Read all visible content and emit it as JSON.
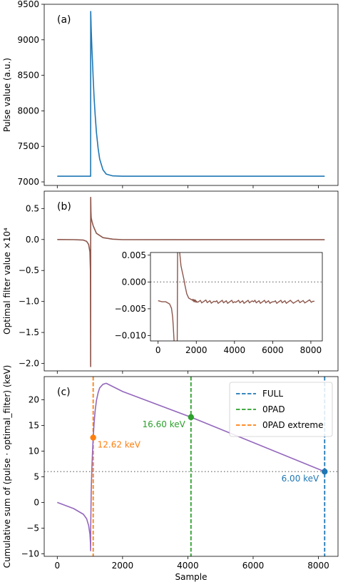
{
  "chart_data": [
    {
      "panel": "(a)",
      "type": "line",
      "ylabel": "Pulse value (a.u.)",
      "xlim": [
        -400,
        8600
      ],
      "ylim": [
        6950,
        9500
      ],
      "yticks": [
        7000,
        7500,
        8000,
        8500,
        9000,
        9500
      ],
      "show_xtick_labels": false,
      "series": [
        {
          "color": "#1f77b4",
          "x": [
            0,
            500,
            1000,
            1023,
            1024,
            1040,
            1060,
            1080,
            1100,
            1130,
            1160,
            1200,
            1250,
            1300,
            1400,
            1500,
            1700,
            2000,
            3000,
            5000,
            8191
          ],
          "y": [
            7080,
            7080,
            7080,
            7080,
            9400,
            9150,
            8900,
            8670,
            8450,
            8180,
            7950,
            7700,
            7480,
            7320,
            7170,
            7110,
            7085,
            7080,
            7080,
            7080,
            7080
          ]
        }
      ]
    },
    {
      "panel": "(b)",
      "type": "line",
      "ylabel": "Optimal filter value ×10⁴",
      "xlim": [
        -400,
        8600
      ],
      "ylim": [
        -2.12,
        0.78
      ],
      "yticks": [
        -2.0,
        -1.5,
        -1.0,
        -0.5,
        0.0,
        0.5
      ],
      "ytick_labels": [
        "−2.0",
        "−1.5",
        "−1.0",
        "−0.5",
        "0.0",
        "0.5"
      ],
      "show_xtick_labels": false,
      "series": [
        {
          "color": "#8c564b",
          "x": [
            0,
            500,
            800,
            900,
            960,
            1000,
            1015,
            1023,
            1024,
            1030,
            1040,
            1060,
            1100,
            1200,
            1400,
            1700,
            2000,
            4000,
            6000,
            8191
          ],
          "y": [
            0.0,
            -0.002,
            -0.01,
            -0.03,
            -0.08,
            -0.2,
            -0.5,
            -2.05,
            0.68,
            0.45,
            0.35,
            0.3,
            0.22,
            0.1,
            0.03,
            0.005,
            -0.003,
            -0.004,
            -0.004,
            -0.004
          ]
        }
      ],
      "inset": {
        "xlim": [
          -400,
          8600
        ],
        "ylim": [
          -0.011,
          0.0055
        ],
        "xticks": [
          0,
          2000,
          4000,
          6000,
          8000
        ],
        "yticks": [
          0.005,
          0.0,
          -0.005,
          -0.01
        ],
        "ytick_labels": [
          "0.005",
          "0.000",
          "−0.005",
          "−0.010"
        ],
        "hline": 0.0,
        "series": [
          {
            "color": "#8c564b",
            "x": [
              0,
              200,
              400,
              600,
              700,
              760,
              800,
              830,
              870,
              1000,
              1024,
              1060,
              1200,
              1350,
              1400,
              1440,
              1500,
              1600,
              1800,
              2000,
              3000,
              4000,
              5000,
              6000,
              7000,
              8191
            ],
            "y": [
              -0.0035,
              -0.0037,
              -0.0037,
              -0.0041,
              -0.0049,
              -0.0065,
              -0.0085,
              -0.0105,
              -0.013,
              -0.013,
              0.008,
              0.008,
              0.003,
              0.0005,
              -0.0005,
              -0.0012,
              -0.0022,
              -0.003,
              -0.0034,
              -0.0036,
              -0.0037,
              -0.0037,
              -0.0037,
              -0.0037,
              -0.0037,
              -0.0036
            ]
          }
        ]
      }
    },
    {
      "panel": "(c)",
      "type": "line",
      "ylabel": "Cumulative sum of  (pulse · optimal_filter)  (keV)",
      "ylabel_unit_hat": "keV",
      "xlabel": "Sample",
      "xlim": [
        -400,
        8600
      ],
      "ylim": [
        -10.5,
        24.5
      ],
      "yticks": [
        -10,
        -5,
        0,
        5,
        10,
        15,
        20
      ],
      "ytick_labels": [
        "−10",
        "−5",
        "0",
        "5",
        "10",
        "15",
        "20"
      ],
      "xticks": [
        0,
        2000,
        4000,
        6000,
        8000
      ],
      "hline": 6.0,
      "series": [
        {
          "color": "#9467bd",
          "x": [
            0,
            500,
            800,
            900,
            960,
            1000,
            1015,
            1023,
            1024,
            1040,
            1060,
            1080,
            1100,
            1130,
            1160,
            1200,
            1250,
            1300,
            1400,
            1500,
            2000,
            4096,
            8191
          ],
          "y": [
            0.0,
            -1.2,
            -2.3,
            -3.2,
            -4.5,
            -6.2,
            -7.8,
            -9.4,
            -5.0,
            2.0,
            6.5,
            10.0,
            12.62,
            15.5,
            17.8,
            19.8,
            21.3,
            22.3,
            23.0,
            23.2,
            21.6,
            16.6,
            6.0
          ]
        }
      ],
      "vlines": [
        {
          "name": "FULL",
          "x": 8191,
          "color": "#1f77b4"
        },
        {
          "name": "0PAD",
          "x": 4096,
          "color": "#2ca02c"
        },
        {
          "name": "0PAD extreme",
          "x": 1100,
          "color": "#ff7f0e"
        }
      ],
      "points": [
        {
          "x": 1100,
          "y": 12.62,
          "color": "#ff7f0e",
          "label": "12.62",
          "unit": "keV",
          "label_pos": "right"
        },
        {
          "x": 4096,
          "y": 16.6,
          "color": "#2ca02c",
          "label": "16.60 keV",
          "unit": "",
          "label_pos": "left"
        },
        {
          "x": 8191,
          "y": 6.0,
          "color": "#1f77b4",
          "label": "6.00 keV",
          "unit": "",
          "label_pos": "left"
        }
      ],
      "legend": {
        "position": "top-right",
        "entries": [
          "FULL",
          "0PAD",
          "0PAD extreme"
        ]
      }
    }
  ]
}
